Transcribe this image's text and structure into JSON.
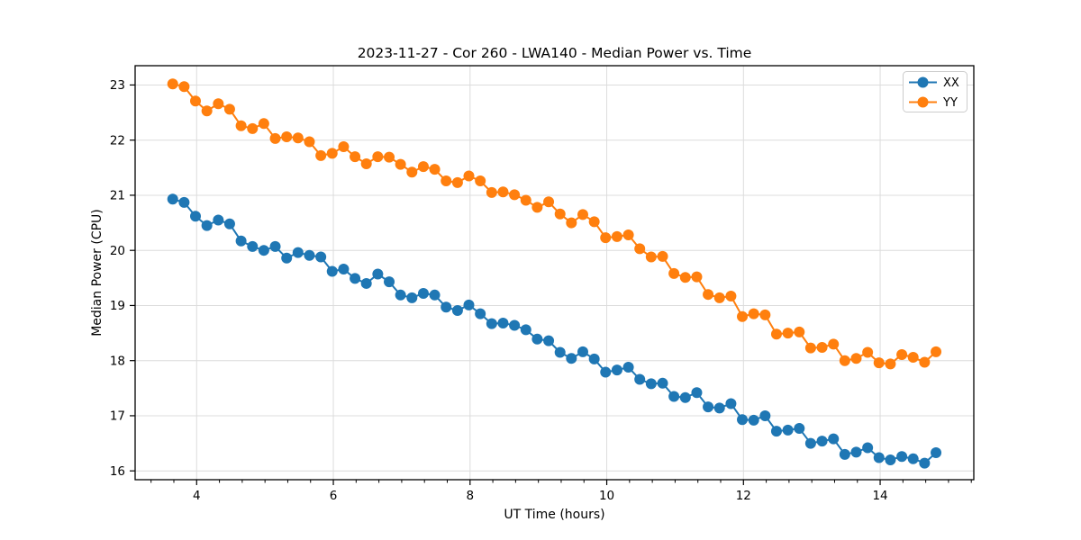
{
  "chart_data": {
    "type": "line",
    "title": "2023-11-27 - Cor 260 - LWA140 - Median Power vs. Time",
    "xlabel": "UT Time (hours)",
    "ylabel": "Median Power (CPU)",
    "xlim": [
      3.1,
      15.37
    ],
    "ylim": [
      15.84,
      23.35
    ],
    "xticks": [
      4,
      6,
      8,
      10,
      12,
      14
    ],
    "yticks": [
      16,
      17,
      18,
      19,
      20,
      21,
      22,
      23
    ],
    "x_minor_tick_step": 0.3333,
    "grid": true,
    "grid_color": "#dcdcdc",
    "axis_color": "#000000",
    "legend_position": "upper right",
    "marker": "circle",
    "x": [
      3.65,
      3.817,
      3.983,
      4.15,
      4.317,
      4.483,
      4.65,
      4.817,
      4.983,
      5.15,
      5.317,
      5.483,
      5.65,
      5.817,
      5.983,
      6.15,
      6.317,
      6.483,
      6.65,
      6.817,
      6.983,
      7.15,
      7.317,
      7.483,
      7.65,
      7.817,
      7.983,
      8.15,
      8.317,
      8.483,
      8.65,
      8.817,
      8.983,
      9.15,
      9.317,
      9.483,
      9.65,
      9.817,
      9.983,
      10.15,
      10.317,
      10.483,
      10.65,
      10.817,
      10.983,
      11.15,
      11.317,
      11.483,
      11.65,
      11.817,
      11.983,
      12.15,
      12.317,
      12.483,
      12.65,
      12.817,
      12.983,
      13.15,
      13.317,
      13.483,
      13.65,
      13.817,
      13.983,
      14.15,
      14.317,
      14.483,
      14.65,
      14.817
    ],
    "series": [
      {
        "name": "XX",
        "color": "#1f77b4",
        "values": [
          20.93,
          20.87,
          20.62,
          20.45,
          20.55,
          20.48,
          20.17,
          20.07,
          20.0,
          20.07,
          19.86,
          19.96,
          19.91,
          19.88,
          19.62,
          19.66,
          19.49,
          19.4,
          19.57,
          19.43,
          19.19,
          19.14,
          19.22,
          19.19,
          18.97,
          18.91,
          19.01,
          18.85,
          18.67,
          18.68,
          18.64,
          18.56,
          18.39,
          18.36,
          18.15,
          18.04,
          18.16,
          18.03,
          17.79,
          17.83,
          17.88,
          17.66,
          17.58,
          17.59,
          17.35,
          17.33,
          17.42,
          17.16,
          17.14,
          17.22,
          16.93,
          16.92,
          17.0,
          16.72,
          16.74,
          16.77,
          16.5,
          16.54,
          16.58,
          16.3,
          16.34,
          16.42,
          16.24,
          16.2,
          16.26,
          16.22,
          16.14,
          16.33
        ]
      },
      {
        "name": "YY",
        "color": "#ff7f0e",
        "values": [
          23.02,
          22.97,
          22.71,
          22.53,
          22.66,
          22.56,
          22.26,
          22.21,
          22.3,
          22.03,
          22.06,
          22.04,
          21.97,
          21.72,
          21.76,
          21.88,
          21.7,
          21.57,
          21.7,
          21.69,
          21.56,
          21.42,
          21.52,
          21.47,
          21.26,
          21.23,
          21.35,
          21.26,
          21.05,
          21.06,
          21.01,
          20.91,
          20.78,
          20.88,
          20.66,
          20.5,
          20.65,
          20.52,
          20.23,
          20.25,
          20.28,
          20.03,
          19.88,
          19.89,
          19.58,
          19.51,
          19.52,
          19.2,
          19.14,
          19.17,
          18.8,
          18.85,
          18.83,
          18.48,
          18.5,
          18.52,
          18.23,
          18.24,
          18.3,
          18.0,
          18.04,
          18.15,
          17.96,
          17.94,
          18.11,
          18.06,
          17.97,
          18.16
        ]
      }
    ]
  }
}
